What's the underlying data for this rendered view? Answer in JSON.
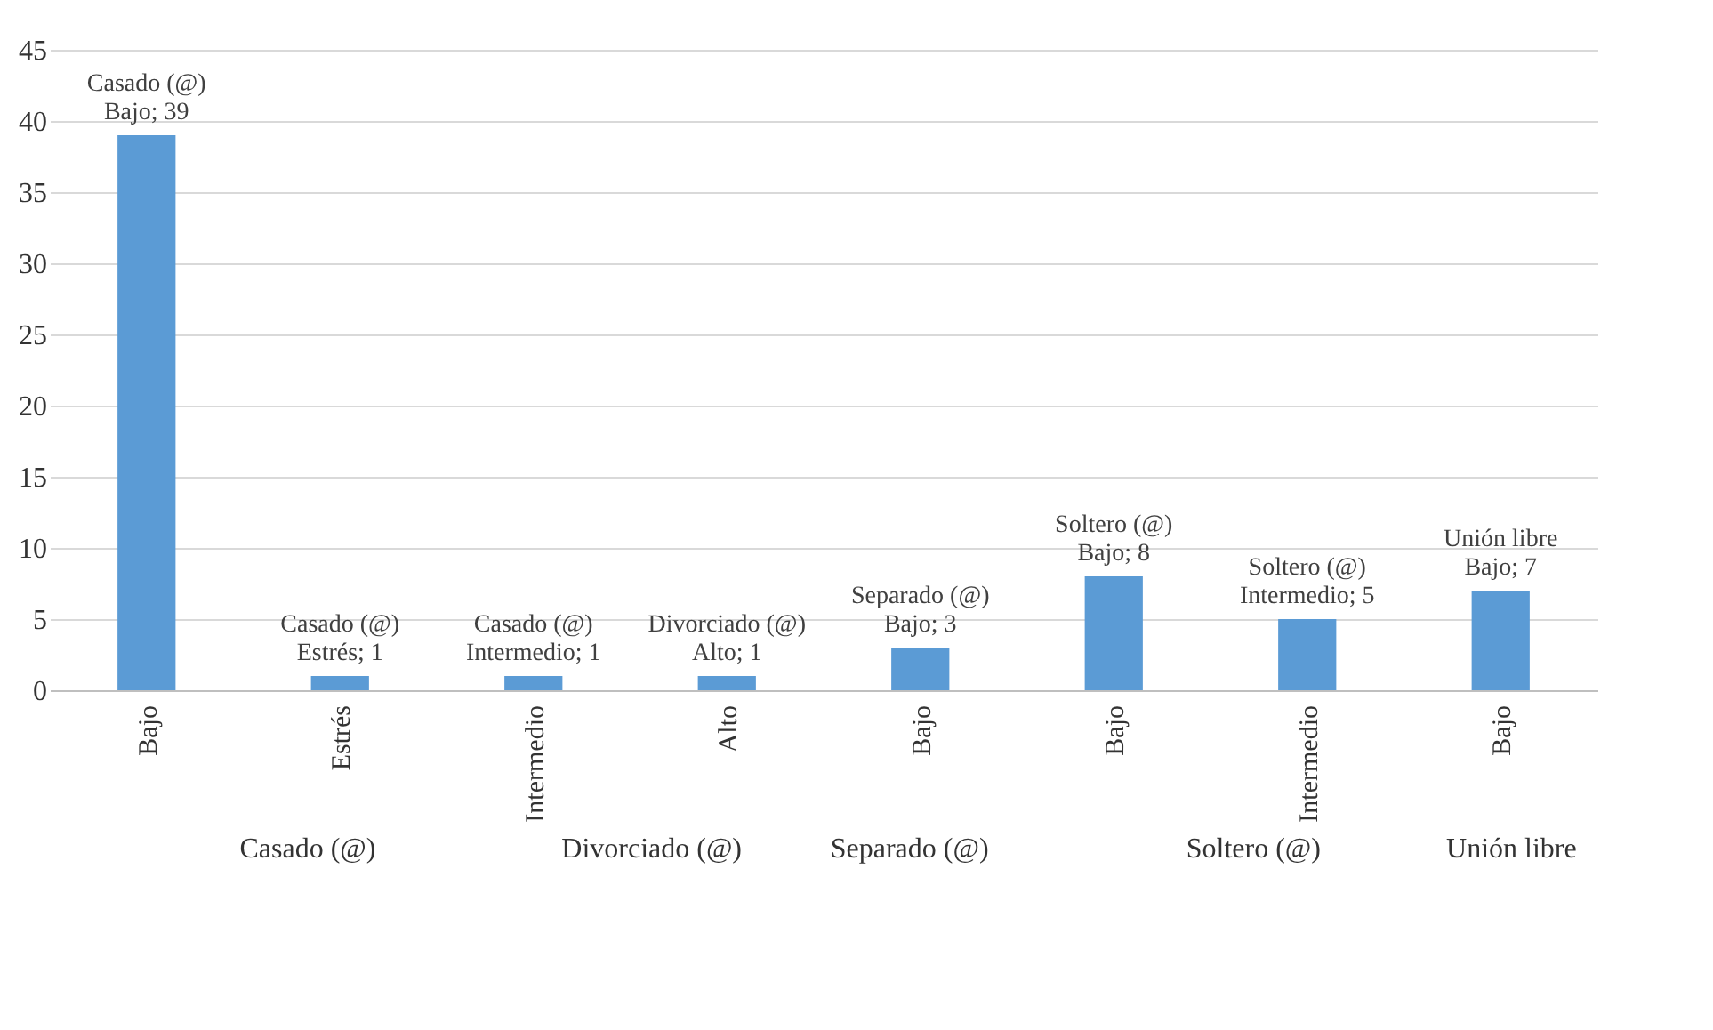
{
  "chart_data": {
    "type": "bar",
    "categories": [
      "Bajo",
      "Estrés",
      "Intermedio",
      "Alto",
      null,
      "Bajo",
      "Bajo",
      "Intermedio",
      "Bajo"
    ],
    "values": [
      39,
      1,
      1,
      1,
      null,
      3,
      8,
      5,
      7
    ],
    "value_labels": [
      "Casado (@) Bajo; 39",
      "Casado (@) Estrés; 1",
      "Casado (@) Intermedio; 1",
      "Divorciado (@) Alto; 1",
      null,
      "Separado (@) Bajo; 3",
      "Soltero (@) Bajo; 8",
      "Soltero (@) Intermedio; 5",
      "Unión libre Bajo; 7"
    ],
    "color": "#5b9bd5",
    "ylim": [
      0,
      45
    ],
    "yticks": [
      0,
      5,
      10,
      15,
      20,
      25,
      30,
      35,
      40,
      45
    ],
    "grid": "y",
    "annotations": [
      "Casado (@)",
      "Divorciado (@)",
      "Separado (@)",
      "Soltero (@)",
      "Unión libre"
    ]
  }
}
